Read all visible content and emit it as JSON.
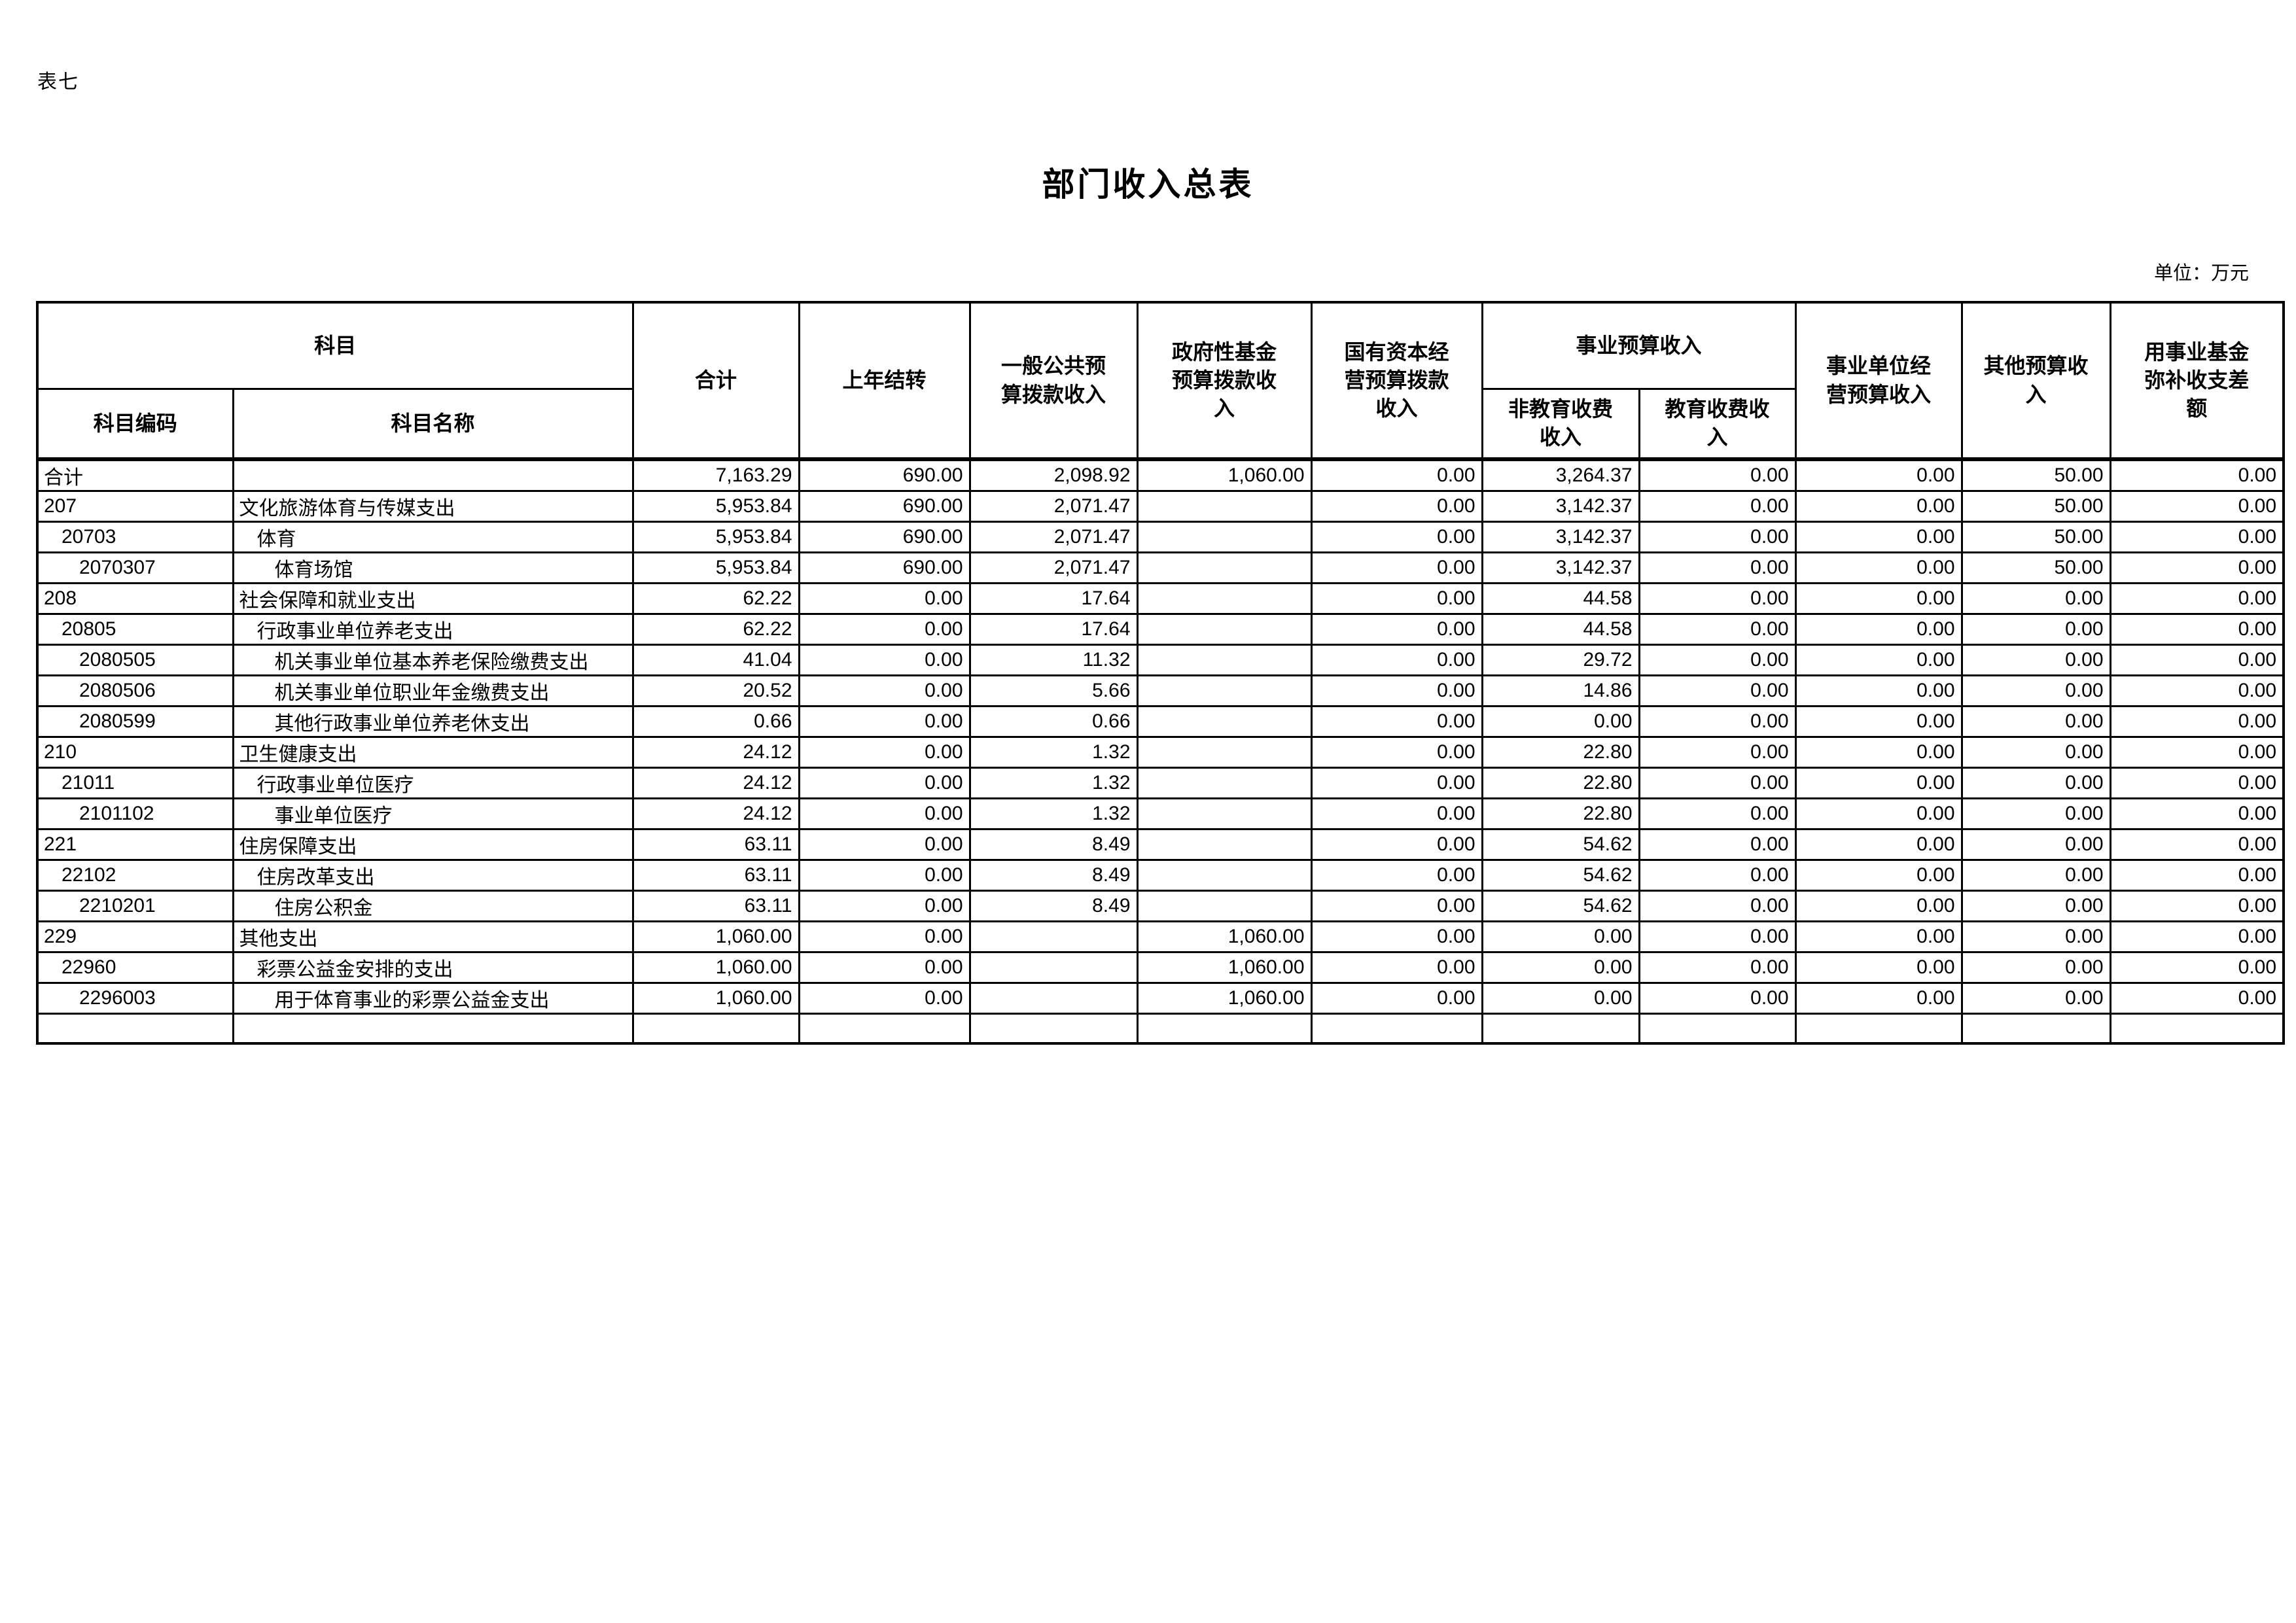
{
  "page": {
    "table_label": "表七",
    "title": "部门收入总表",
    "unit_note": "单位：万元"
  },
  "table": {
    "header": {
      "subject": "科目",
      "subject_code": "科目编码",
      "subject_name": "科目名称",
      "total": "合计",
      "carryover": "上年结转",
      "general_public": "一般公共预\n算拨款收入",
      "govt_fund": "政府性基金\n预算拨款收\n入",
      "state_capital": "国有资本经\n营预算拨款\n收入",
      "business_income": "事业预算收入",
      "non_edu_fee": "非教育收费\n收入",
      "edu_fee": "教育收费收\n入",
      "business_operating": "事业单位经\n营预算收入",
      "other_income": "其他预算收\n入",
      "fund_subsidy": "用事业基金\n弥补收支差\n额"
    },
    "rows": [
      {
        "code": "合计",
        "name": "",
        "indent": 0,
        "values": [
          "7,163.29",
          "690.00",
          "2,098.92",
          "1,060.00",
          "0.00",
          "3,264.37",
          "0.00",
          "0.00",
          "50.00",
          "0.00"
        ]
      },
      {
        "code": "207",
        "name": "文化旅游体育与传媒支出",
        "indent": 0,
        "values": [
          "5,953.84",
          "690.00",
          "2,071.47",
          "",
          "0.00",
          "3,142.37",
          "0.00",
          "0.00",
          "50.00",
          "0.00"
        ]
      },
      {
        "code": "20703",
        "name": "体育",
        "indent": 1,
        "values": [
          "5,953.84",
          "690.00",
          "2,071.47",
          "",
          "0.00",
          "3,142.37",
          "0.00",
          "0.00",
          "50.00",
          "0.00"
        ]
      },
      {
        "code": "2070307",
        "name": "体育场馆",
        "indent": 2,
        "values": [
          "5,953.84",
          "690.00",
          "2,071.47",
          "",
          "0.00",
          "3,142.37",
          "0.00",
          "0.00",
          "50.00",
          "0.00"
        ]
      },
      {
        "code": "208",
        "name": "社会保障和就业支出",
        "indent": 0,
        "values": [
          "62.22",
          "0.00",
          "17.64",
          "",
          "0.00",
          "44.58",
          "0.00",
          "0.00",
          "0.00",
          "0.00"
        ]
      },
      {
        "code": "20805",
        "name": "行政事业单位养老支出",
        "indent": 1,
        "values": [
          "62.22",
          "0.00",
          "17.64",
          "",
          "0.00",
          "44.58",
          "0.00",
          "0.00",
          "0.00",
          "0.00"
        ]
      },
      {
        "code": "2080505",
        "name": "机关事业单位基本养老保险缴费支出",
        "indent": 2,
        "values": [
          "41.04",
          "0.00",
          "11.32",
          "",
          "0.00",
          "29.72",
          "0.00",
          "0.00",
          "0.00",
          "0.00"
        ]
      },
      {
        "code": "2080506",
        "name": "机关事业单位职业年金缴费支出",
        "indent": 2,
        "values": [
          "20.52",
          "0.00",
          "5.66",
          "",
          "0.00",
          "14.86",
          "0.00",
          "0.00",
          "0.00",
          "0.00"
        ]
      },
      {
        "code": "2080599",
        "name": "其他行政事业单位养老休支出",
        "indent": 2,
        "values": [
          "0.66",
          "0.00",
          "0.66",
          "",
          "0.00",
          "0.00",
          "0.00",
          "0.00",
          "0.00",
          "0.00"
        ]
      },
      {
        "code": "210",
        "name": "卫生健康支出",
        "indent": 0,
        "values": [
          "24.12",
          "0.00",
          "1.32",
          "",
          "0.00",
          "22.80",
          "0.00",
          "0.00",
          "0.00",
          "0.00"
        ]
      },
      {
        "code": "21011",
        "name": "行政事业单位医疗",
        "indent": 1,
        "values": [
          "24.12",
          "0.00",
          "1.32",
          "",
          "0.00",
          "22.80",
          "0.00",
          "0.00",
          "0.00",
          "0.00"
        ]
      },
      {
        "code": "2101102",
        "name": "事业单位医疗",
        "indent": 2,
        "values": [
          "24.12",
          "0.00",
          "1.32",
          "",
          "0.00",
          "22.80",
          "0.00",
          "0.00",
          "0.00",
          "0.00"
        ]
      },
      {
        "code": "221",
        "name": "住房保障支出",
        "indent": 0,
        "values": [
          "63.11",
          "0.00",
          "8.49",
          "",
          "0.00",
          "54.62",
          "0.00",
          "0.00",
          "0.00",
          "0.00"
        ]
      },
      {
        "code": "22102",
        "name": "住房改革支出",
        "indent": 1,
        "values": [
          "63.11",
          "0.00",
          "8.49",
          "",
          "0.00",
          "54.62",
          "0.00",
          "0.00",
          "0.00",
          "0.00"
        ]
      },
      {
        "code": "2210201",
        "name": "住房公积金",
        "indent": 2,
        "values": [
          "63.11",
          "0.00",
          "8.49",
          "",
          "0.00",
          "54.62",
          "0.00",
          "0.00",
          "0.00",
          "0.00"
        ]
      },
      {
        "code": "229",
        "name": "其他支出",
        "indent": 0,
        "values": [
          "1,060.00",
          "0.00",
          "",
          "1,060.00",
          "0.00",
          "0.00",
          "0.00",
          "0.00",
          "0.00",
          "0.00"
        ]
      },
      {
        "code": "22960",
        "name": "彩票公益金安排的支出",
        "indent": 1,
        "values": [
          "1,060.00",
          "0.00",
          "",
          "1,060.00",
          "0.00",
          "0.00",
          "0.00",
          "0.00",
          "0.00",
          "0.00"
        ]
      },
      {
        "code": "2296003",
        "name": "用于体育事业的彩票公益金支出",
        "indent": 2,
        "values": [
          "1,060.00",
          "0.00",
          "",
          "1,060.00",
          "0.00",
          "0.00",
          "0.00",
          "0.00",
          "0.00",
          "0.00"
        ]
      },
      {
        "code": "",
        "name": "",
        "indent": 0,
        "values": [
          "",
          "",
          "",
          "",
          "",
          "",
          "",
          "",
          "",
          ""
        ]
      }
    ]
  }
}
